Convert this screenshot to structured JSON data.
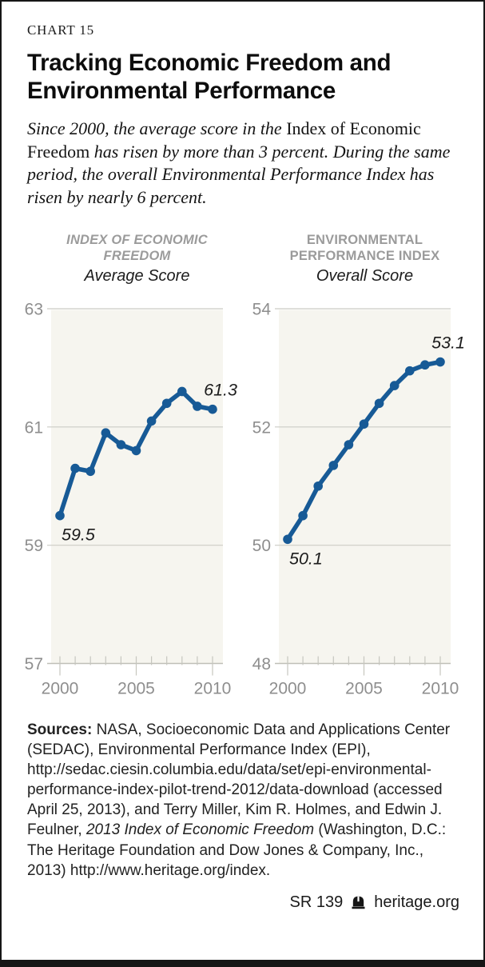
{
  "header": {
    "chart_label": "CHART 15",
    "title": "Tracking Economic Freedom and Environmental Performance"
  },
  "intro_parts": [
    {
      "style": "italic",
      "text": "Since 2000, the average score in the "
    },
    {
      "style": "roman",
      "text": "Index of Economic Freedom"
    },
    {
      "style": "italic",
      "text": " has risen by more than 3 percent. During the same period, the overall Environmental Performance Index has risen by nearly 6 percent."
    }
  ],
  "colors": {
    "line": "#175a96",
    "plot_bg": "#f6f5ef",
    "grid": "#ccccc5",
    "axis_line": "#bfbfb7",
    "tick": "#c6c6bf",
    "axis_text": "#8e8e8e",
    "caps_text": "#9b9b9b",
    "label_text": "#1c1c1c"
  },
  "chart_data": [
    {
      "type": "line",
      "title": "INDEX OF ECONOMIC FREEDOM",
      "title_lines": [
        "INDEX OF ECONOMIC",
        "FREEDOM"
      ],
      "title_italic": true,
      "subtitle": "Average Score",
      "x": [
        2000,
        2001,
        2002,
        2003,
        2004,
        2005,
        2006,
        2007,
        2008,
        2009,
        2010
      ],
      "values": [
        59.5,
        60.3,
        60.25,
        60.9,
        60.7,
        60.6,
        61.1,
        61.4,
        61.6,
        61.35,
        61.3
      ],
      "ylim": [
        57,
        63
      ],
      "yticks": [
        63,
        61,
        59,
        57
      ],
      "xticks_labeled": [
        2000,
        2005,
        2010
      ],
      "first_point_label": "59.5",
      "last_point_label": "61.3",
      "grid": true,
      "legend": "none"
    },
    {
      "type": "line",
      "title": "ENVIRONMENTAL PERFORMANCE INDEX",
      "title_lines": [
        "ENVIRONMENTAL",
        "PERFORMANCE INDEX"
      ],
      "title_italic": false,
      "subtitle": "Overall Score",
      "x": [
        2000,
        2001,
        2002,
        2003,
        2004,
        2005,
        2006,
        2007,
        2008,
        2009,
        2010
      ],
      "values": [
        50.1,
        50.5,
        51.0,
        51.35,
        51.7,
        52.05,
        52.4,
        52.7,
        52.95,
        53.05,
        53.1
      ],
      "ylim": [
        48,
        54
      ],
      "yticks": [
        54,
        52,
        50,
        48
      ],
      "xticks_labeled": [
        2000,
        2005,
        2010
      ],
      "first_point_label": "50.1",
      "last_point_label": "53.1",
      "grid": true,
      "legend": "none"
    }
  ],
  "sources_parts": [
    {
      "style": "bold",
      "text": "Sources: "
    },
    {
      "style": "normal",
      "text": "NASA, Socioeconomic Data and Applications Center (SEDAC), Environmental Performance Index (EPI), http://sedac.ciesin.columbia.edu/data/set/epi-environmental-performance-index-pilot-trend-2012/data-download (accessed April 25, 2013), and Terry Miller, Kim R. Holmes, and Edwin J. Feulner, "
    },
    {
      "style": "italic",
      "text": "2013 Index of Economic Freedom"
    },
    {
      "style": "normal",
      "text": " (Washington, D.C.: The Heritage Foundation and Dow Jones & Company, Inc., 2013) http://www.heritage.org/index."
    }
  ],
  "footer": {
    "doc_id": "SR 139",
    "brand": "heritage.org",
    "logo_icon": "liberty-bell-icon"
  }
}
